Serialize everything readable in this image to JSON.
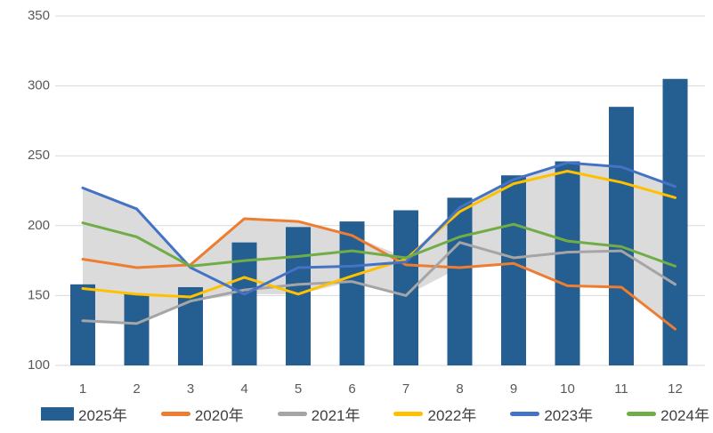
{
  "chart_data": {
    "type": "combo-bar-line",
    "title": "",
    "categories": [
      "1",
      "2",
      "3",
      "4",
      "5",
      "6",
      "7",
      "8",
      "9",
      "10",
      "11",
      "12"
    ],
    "y_axis": {
      "min": 100,
      "max": 350,
      "step": 50,
      "ticks": [
        "350",
        "300",
        "250",
        "200",
        "150",
        "100"
      ],
      "tick_values": [
        350,
        300,
        250,
        200,
        150,
        100
      ],
      "grid": true
    },
    "bar_series": {
      "name": "2025年",
      "color": "#255E91",
      "values": [
        158,
        151,
        156,
        188,
        199,
        203,
        211,
        220,
        236,
        246,
        285,
        305
      ]
    },
    "line_series": [
      {
        "name": "2020年",
        "color": "#ED7D31",
        "values": [
          176,
          170,
          172,
          205,
          203,
          193,
          172,
          170,
          173,
          157,
          156,
          126
        ]
      },
      {
        "name": "2021年",
        "color": "#A5A5A5",
        "values": [
          132,
          130,
          146,
          154,
          158,
          160,
          150,
          188,
          177,
          181,
          182,
          158
        ]
      },
      {
        "name": "2022年",
        "color": "#FFC000",
        "values": [
          155,
          151,
          149,
          163,
          151,
          164,
          176,
          210,
          230,
          239,
          231,
          220
        ]
      },
      {
        "name": "2023年",
        "color": "#4472C4",
        "values": [
          227,
          212,
          170,
          151,
          170,
          171,
          174,
          213,
          233,
          245,
          242,
          228
        ]
      },
      {
        "name": "2024年",
        "color": "#70AD47",
        "values": [
          202,
          192,
          171,
          175,
          178,
          182,
          177,
          192,
          201,
          189,
          185,
          171
        ]
      }
    ],
    "band": {
      "description": "light gray envelope between per-month min and max of the line series",
      "color": "#D9D9D9"
    },
    "legend_position": "bottom",
    "legend_order": [
      "2025年",
      "2020年",
      "2021年",
      "2022年",
      "2023年",
      "2024年"
    ]
  },
  "style_colors": {
    "background": "#FFFFFF",
    "gridline": "#D9D9D9",
    "axis_text": "#595959",
    "legend_text": "#3F3F3F"
  }
}
